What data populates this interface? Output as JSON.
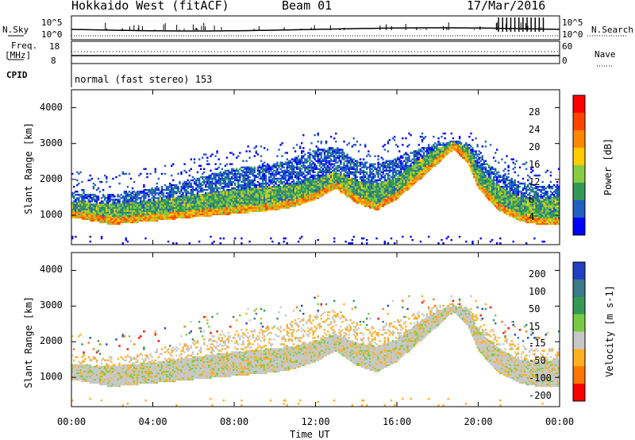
{
  "header": {
    "title": "Hokkaido West (fitACF)",
    "beam": "Beam 01",
    "date": "17/Mar/2016"
  },
  "top_panels": {
    "nsky_label": "N.Sky",
    "nsearch_label": "N.Search",
    "counts_ticks": [
      "10^5",
      "10^0"
    ],
    "freq_label": "Freq.",
    "freq_unit": "[MHz]",
    "freq_ticks": [
      "18",
      "8"
    ],
    "nave_label": "Nave",
    "nave_ticks": [
      "60",
      "0"
    ],
    "cpid_label": "CPID",
    "cpid_text": "normal (fast stereo) 153"
  },
  "chart_data": [
    {
      "type": "heatmap",
      "title": "",
      "xlabel": "Time UT",
      "ylabel": "Slant Range [km]",
      "x_range_hours": [
        0,
        24
      ],
      "x_ticks": [
        "00:00",
        "04:00",
        "08:00",
        "12:00",
        "16:00",
        "20:00",
        "00:00"
      ],
      "ylim": [
        180,
        4500
      ],
      "y_ticks": [
        1000,
        2000,
        3000,
        4000
      ],
      "colorbar": {
        "label": "Power [dB]",
        "range": [
          0,
          30
        ],
        "ticks": [
          "28",
          "24",
          "20",
          "16",
          "12",
          "8",
          "4"
        ],
        "colors": [
          "#ff0000",
          "#ff4400",
          "#ff8800",
          "#ffcc00",
          "#88cc44",
          "#339955",
          "#1f5fbf",
          "#0000ff"
        ]
      },
      "band": {
        "time_hours": [
          0,
          2,
          4,
          6,
          8,
          10,
          11,
          12,
          13,
          14,
          15,
          16,
          17,
          18,
          18.8,
          19.5,
          20,
          21,
          22,
          23,
          24
        ],
        "lower_edge_km": [
          1000,
          800,
          900,
          1000,
          1100,
          1200,
          1300,
          1500,
          1800,
          1400,
          1200,
          1500,
          2000,
          2500,
          2900,
          2500,
          1800,
          1200,
          900,
          800,
          800
        ],
        "upper_edge_km": [
          1350,
          1300,
          1400,
          1550,
          1700,
          1800,
          1850,
          2000,
          2200,
          1950,
          1850,
          2050,
          2500,
          2850,
          3000,
          2900,
          2300,
          1800,
          1500,
          1400,
          1500
        ],
        "outer_edge_km": [
          1600,
          1550,
          1750,
          2000,
          2300,
          2400,
          2600,
          2800,
          2900,
          2500,
          2400,
          2600,
          2800,
          3000,
          3050,
          3000,
          2700,
          2200,
          1900,
          1800,
          1800
        ]
      }
    },
    {
      "type": "heatmap",
      "title": "",
      "xlabel": "Time UT",
      "ylabel": "Slant Range [km]",
      "x_range_hours": [
        0,
        24
      ],
      "x_ticks": [
        "00:00",
        "04:00",
        "08:00",
        "12:00",
        "16:00",
        "20:00",
        "00:00"
      ],
      "ylim": [
        180,
        4500
      ],
      "y_ticks": [
        1000,
        2000,
        3000,
        4000
      ],
      "colorbar": {
        "label": "Velocity [m s-1]",
        "range": [
          -250,
          250
        ],
        "ticks": [
          "200",
          "100",
          "50",
          "15",
          "-15",
          "-50",
          "-100",
          "-200"
        ],
        "colors": [
          "#2040c0",
          "#3a7a8a",
          "#339955",
          "#77cc44",
          "#c8c8c8",
          "#ffb020",
          "#ff7700",
          "#ff0000"
        ]
      }
    }
  ]
}
